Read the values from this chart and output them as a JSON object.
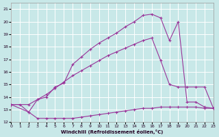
{
  "xlabel": "Windchill (Refroidissement éolien,°C)",
  "bg_color": "#c8e8e8",
  "grid_color": "#b8d8d8",
  "line_color": "#993399",
  "tick_color": "#220022",
  "xlim": [
    0,
    23
  ],
  "ylim": [
    12,
    21.5
  ],
  "yticks": [
    12,
    13,
    14,
    15,
    16,
    17,
    18,
    19,
    20,
    21
  ],
  "xticks": [
    0,
    1,
    2,
    3,
    4,
    5,
    6,
    7,
    8,
    9,
    10,
    11,
    12,
    13,
    14,
    15,
    16,
    17,
    18,
    19,
    20,
    21,
    22,
    23
  ],
  "curve1_x": [
    0,
    1,
    2,
    3,
    4,
    5,
    6,
    7,
    8,
    9,
    10,
    11,
    12,
    13,
    14,
    15,
    16,
    17,
    18,
    19,
    20,
    21,
    22,
    23
  ],
  "curve1_y": [
    13.4,
    13.4,
    12.8,
    12.3,
    12.3,
    12.3,
    12.3,
    12.3,
    12.4,
    12.5,
    12.6,
    12.7,
    12.8,
    12.9,
    13.0,
    13.1,
    13.1,
    13.2,
    13.2,
    13.2,
    13.2,
    13.2,
    13.1,
    13.1
  ],
  "curve2_x": [
    0,
    2,
    3,
    4,
    5,
    6,
    7,
    8,
    9,
    10,
    11,
    12,
    13,
    14,
    15,
    16,
    17,
    18,
    19,
    20,
    21,
    22,
    23
  ],
  "curve2_y": [
    13.4,
    13.4,
    13.8,
    14.2,
    14.7,
    15.2,
    15.7,
    16.1,
    16.5,
    16.9,
    17.3,
    17.6,
    17.9,
    18.2,
    18.5,
    18.7,
    16.9,
    15.0,
    14.8,
    14.8,
    14.8,
    14.8,
    13.1
  ],
  "curve3_x": [
    0,
    2,
    3,
    4,
    5,
    6,
    7,
    8,
    9,
    10,
    11,
    12,
    13,
    14,
    15,
    16,
    17,
    18,
    19,
    20,
    21,
    22,
    23
  ],
  "curve3_y": [
    13.4,
    12.8,
    13.8,
    14.0,
    14.8,
    15.1,
    16.6,
    17.2,
    17.8,
    18.3,
    18.7,
    19.1,
    19.6,
    20.0,
    20.5,
    20.6,
    20.3,
    18.5,
    20.0,
    13.6,
    13.6,
    13.2,
    13.1
  ]
}
